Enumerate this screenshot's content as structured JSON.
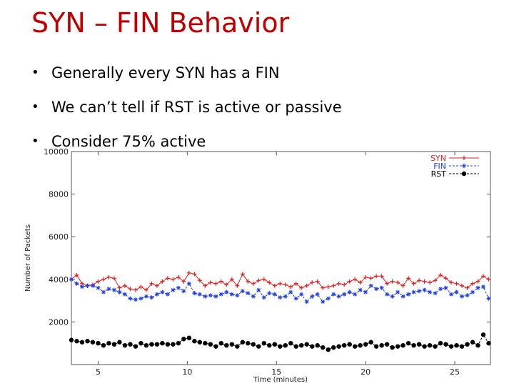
{
  "slide": {
    "title": "SYN – FIN Behavior",
    "bullets": [
      "Generally every SYN has a FIN",
      "We can’t tell if RST is active or passive",
      "Consider 75% active"
    ],
    "bullet_glyph": "•"
  },
  "chart_data": {
    "type": "line",
    "title": "",
    "xlabel": "Time (minutes)",
    "ylabel": "Number of Packets",
    "xlim": [
      3.5,
      27
    ],
    "ylim": [
      0,
      10000
    ],
    "xticks": [
      5,
      10,
      15,
      20,
      25
    ],
    "yticks": [
      2000,
      4000,
      6000,
      8000,
      10000
    ],
    "legend_position": "top-right",
    "grid": false,
    "series": [
      {
        "name": "SYN",
        "color": "#e02020",
        "marker": "plus",
        "x": [
          3.5,
          3.8,
          4.1,
          4.4,
          4.7,
          5.0,
          5.3,
          5.6,
          5.9,
          6.2,
          6.5,
          6.8,
          7.1,
          7.4,
          7.7,
          8.0,
          8.3,
          8.6,
          8.9,
          9.2,
          9.5,
          9.8,
          10.1,
          10.4,
          10.7,
          11.0,
          11.3,
          11.6,
          11.9,
          12.2,
          12.5,
          12.8,
          13.1,
          13.4,
          13.7,
          14.0,
          14.3,
          14.6,
          14.9,
          15.2,
          15.5,
          15.8,
          16.1,
          16.4,
          16.7,
          17.0,
          17.3,
          17.6,
          17.9,
          18.2,
          18.5,
          18.8,
          19.1,
          19.4,
          19.7,
          20.0,
          20.3,
          20.6,
          20.9,
          21.2,
          21.5,
          21.8,
          22.1,
          22.4,
          22.7,
          23.0,
          23.3,
          23.6,
          23.9,
          24.2,
          24.5,
          24.8,
          25.1,
          25.4,
          25.7,
          26.0,
          26.3,
          26.6,
          26.9
        ],
        "y": [
          4000,
          4200,
          3800,
          3700,
          3750,
          3900,
          4000,
          4100,
          4050,
          3600,
          3700,
          3550,
          3500,
          3650,
          3500,
          3800,
          3700,
          3900,
          4050,
          4000,
          4100,
          3900,
          4300,
          4250,
          3950,
          3700,
          3850,
          3800,
          3900,
          3750,
          4000,
          3700,
          4250,
          3900,
          3800,
          3950,
          4000,
          3850,
          3700,
          3800,
          3750,
          3650,
          3800,
          3600,
          3700,
          3850,
          3900,
          3600,
          3650,
          3700,
          3800,
          3750,
          3900,
          4000,
          3850,
          4100,
          4050,
          4150,
          4150,
          3800,
          3900,
          3850,
          3700,
          4050,
          3800,
          3950,
          3900,
          3850,
          3950,
          4200,
          4050,
          3850,
          3800,
          3700,
          3600,
          3800,
          3900,
          4150,
          4000
        ]
      },
      {
        "name": "FIN",
        "color": "#2040e0",
        "marker": "star",
        "x": [
          3.5,
          3.8,
          4.1,
          4.4,
          4.7,
          5.0,
          5.3,
          5.6,
          5.9,
          6.2,
          6.5,
          6.8,
          7.1,
          7.4,
          7.7,
          8.0,
          8.3,
          8.6,
          8.9,
          9.2,
          9.5,
          9.8,
          10.1,
          10.4,
          10.7,
          11.0,
          11.3,
          11.6,
          11.9,
          12.2,
          12.5,
          12.8,
          13.1,
          13.4,
          13.7,
          14.0,
          14.3,
          14.6,
          14.9,
          15.2,
          15.5,
          15.8,
          16.1,
          16.4,
          16.7,
          17.0,
          17.3,
          17.6,
          17.9,
          18.2,
          18.5,
          18.8,
          19.1,
          19.4,
          19.7,
          20.0,
          20.3,
          20.6,
          20.9,
          21.2,
          21.5,
          21.8,
          22.1,
          22.4,
          22.7,
          23.0,
          23.3,
          23.6,
          23.9,
          24.2,
          24.5,
          24.8,
          25.1,
          25.4,
          25.7,
          26.0,
          26.3,
          26.6,
          26.9
        ],
        "y": [
          4000,
          3800,
          3650,
          3700,
          3700,
          3600,
          3400,
          3550,
          3500,
          3400,
          3300,
          3100,
          3050,
          3100,
          3200,
          3150,
          3300,
          3400,
          3300,
          3500,
          3600,
          3450,
          3800,
          3350,
          3300,
          3200,
          3250,
          3200,
          3300,
          3400,
          3300,
          3250,
          3450,
          3350,
          3200,
          3500,
          3150,
          3350,
          3300,
          3150,
          3200,
          3400,
          3100,
          3300,
          2950,
          3200,
          3300,
          2950,
          3100,
          3300,
          3200,
          3300,
          3400,
          3300,
          3500,
          3400,
          3700,
          3550,
          3600,
          3300,
          3200,
          3400,
          3200,
          3300,
          3400,
          3450,
          3500,
          3400,
          3350,
          3550,
          3600,
          3300,
          3400,
          3200,
          3250,
          3400,
          3600,
          3650,
          3100
        ]
      },
      {
        "name": "RST",
        "color": "#000000",
        "marker": "dot",
        "x": [
          3.5,
          3.8,
          4.1,
          4.4,
          4.7,
          5.0,
          5.3,
          5.6,
          5.9,
          6.2,
          6.5,
          6.8,
          7.1,
          7.4,
          7.7,
          8.0,
          8.3,
          8.6,
          8.9,
          9.2,
          9.5,
          9.8,
          10.1,
          10.4,
          10.7,
          11.0,
          11.3,
          11.6,
          11.9,
          12.2,
          12.5,
          12.8,
          13.1,
          13.4,
          13.7,
          14.0,
          14.3,
          14.6,
          14.9,
          15.2,
          15.5,
          15.8,
          16.1,
          16.4,
          16.7,
          17.0,
          17.3,
          17.6,
          17.9,
          18.2,
          18.5,
          18.8,
          19.1,
          19.4,
          19.7,
          20.0,
          20.3,
          20.6,
          20.9,
          21.2,
          21.5,
          21.8,
          22.1,
          22.4,
          22.7,
          23.0,
          23.3,
          23.6,
          23.9,
          24.2,
          24.5,
          24.8,
          25.1,
          25.4,
          25.7,
          26.0,
          26.3,
          26.6,
          26.9
        ],
        "y": [
          1150,
          1100,
          1050,
          1100,
          1050,
          1000,
          900,
          1000,
          950,
          1050,
          900,
          950,
          850,
          1000,
          900,
          950,
          950,
          1000,
          950,
          950,
          1000,
          1200,
          1250,
          1100,
          1050,
          1000,
          950,
          850,
          1000,
          900,
          950,
          850,
          1050,
          1000,
          950,
          850,
          1000,
          900,
          950,
          850,
          900,
          1000,
          850,
          900,
          950,
          850,
          900,
          800,
          700,
          800,
          850,
          900,
          950,
          850,
          900,
          950,
          1050,
          850,
          900,
          950,
          800,
          850,
          900,
          1000,
          900,
          950,
          850,
          900,
          850,
          1000,
          950,
          850,
          900,
          850,
          950,
          1050,
          900,
          1400,
          1000
        ]
      }
    ]
  }
}
